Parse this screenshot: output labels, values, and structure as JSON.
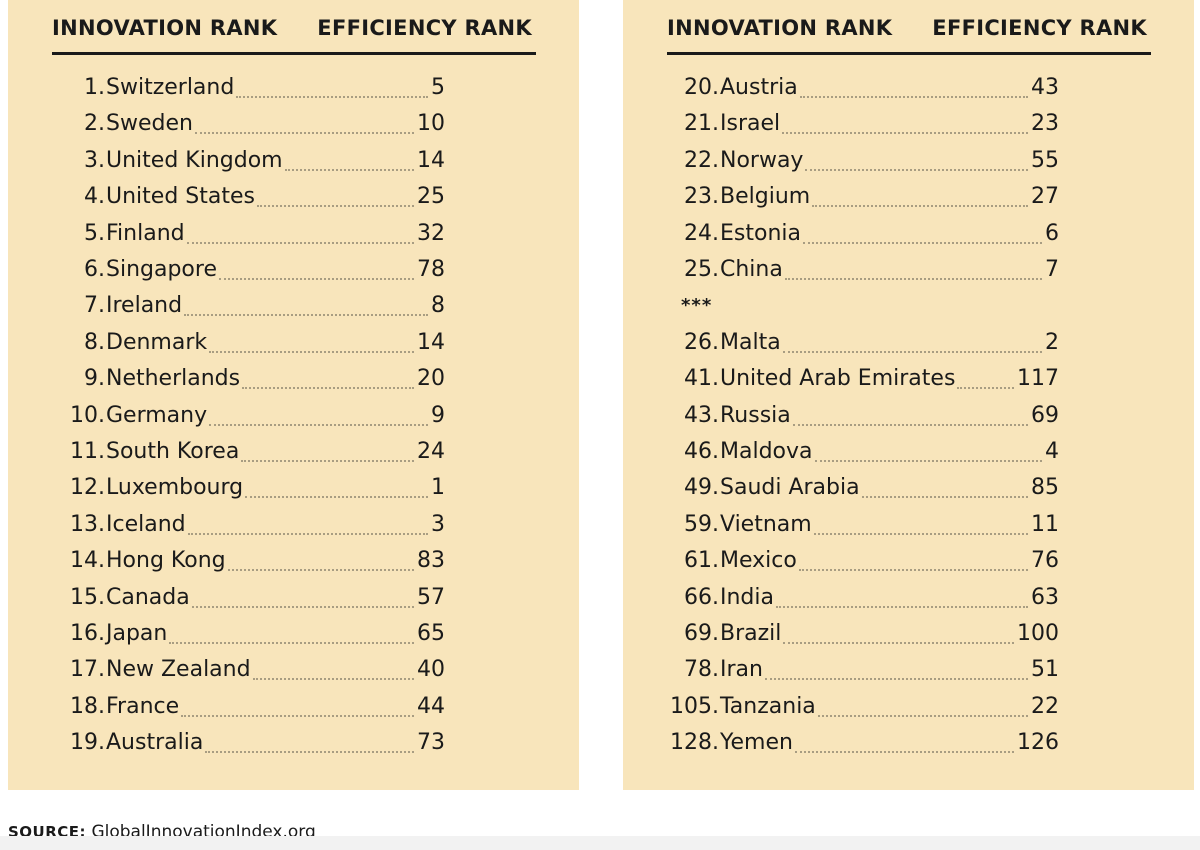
{
  "headers": {
    "innovation": "INNOVATION RANK",
    "efficiency": "EFFICIENCY RANK"
  },
  "left": [
    {
      "rank": "1.",
      "country": "Switzerland",
      "eff": "5"
    },
    {
      "rank": "2.",
      "country": "Sweden",
      "eff": "10"
    },
    {
      "rank": "3.",
      "country": "United Kingdom",
      "eff": "14"
    },
    {
      "rank": "4.",
      "country": "United States",
      "eff": "25"
    },
    {
      "rank": "5.",
      "country": "Finland",
      "eff": "32"
    },
    {
      "rank": "6.",
      "country": "Singapore",
      "eff": "78"
    },
    {
      "rank": "7.",
      "country": "Ireland",
      "eff": "8"
    },
    {
      "rank": "8.",
      "country": "Denmark",
      "eff": "14"
    },
    {
      "rank": "9.",
      "country": "Netherlands",
      "eff": "20"
    },
    {
      "rank": "10.",
      "country": "Germany",
      "eff": "9"
    },
    {
      "rank": "11.",
      "country": "South Korea",
      "eff": "24"
    },
    {
      "rank": "12.",
      "country": "Luxembourg",
      "eff": "1"
    },
    {
      "rank": "13.",
      "country": "Iceland",
      "eff": "3"
    },
    {
      "rank": "14.",
      "country": "Hong Kong",
      "eff": "83"
    },
    {
      "rank": "15.",
      "country": "Canada",
      "eff": "57"
    },
    {
      "rank": "16.",
      "country": "Japan",
      "eff": "65"
    },
    {
      "rank": "17.",
      "country": "New Zealand",
      "eff": "40"
    },
    {
      "rank": "18.",
      "country": "France",
      "eff": "44"
    },
    {
      "rank": "19.",
      "country": "Australia",
      "eff": "73"
    }
  ],
  "right": [
    {
      "rank": "20.",
      "country": "Austria",
      "eff": "43"
    },
    {
      "rank": "21.",
      "country": "Israel",
      "eff": "23"
    },
    {
      "rank": "22.",
      "country": "Norway",
      "eff": "55"
    },
    {
      "rank": "23.",
      "country": "Belgium",
      "eff": "27"
    },
    {
      "rank": "24.",
      "country": "Estonia",
      "eff": "6"
    },
    {
      "rank": "25.",
      "country": "China",
      "eff": "7"
    },
    {
      "separator": "***"
    },
    {
      "rank": "26.",
      "country": "Malta",
      "eff": "2"
    },
    {
      "rank": "41.",
      "country": "United Arab Emirates",
      "eff": "117"
    },
    {
      "rank": "43.",
      "country": "Russia",
      "eff": "69"
    },
    {
      "rank": "46.",
      "country": "Maldova",
      "eff": "4"
    },
    {
      "rank": "49.",
      "country": "Saudi Arabia",
      "eff": "85"
    },
    {
      "rank": "59.",
      "country": "Vietnam",
      "eff": "11"
    },
    {
      "rank": "61.",
      "country": "Mexico",
      "eff": "76"
    },
    {
      "rank": "66.",
      "country": "India",
      "eff": "63"
    },
    {
      "rank": "69.",
      "country": "Brazil",
      "eff": "100"
    },
    {
      "rank": "78.",
      "country": "Iran",
      "eff": "51"
    },
    {
      "rank": "105.",
      "country": "Tanzania",
      "eff": "22"
    },
    {
      "rank": "128.",
      "country": "Yemen",
      "eff": "126"
    }
  ],
  "source": {
    "label": "SOURCE:",
    "text": " GlobalInnovationIndex.org"
  }
}
